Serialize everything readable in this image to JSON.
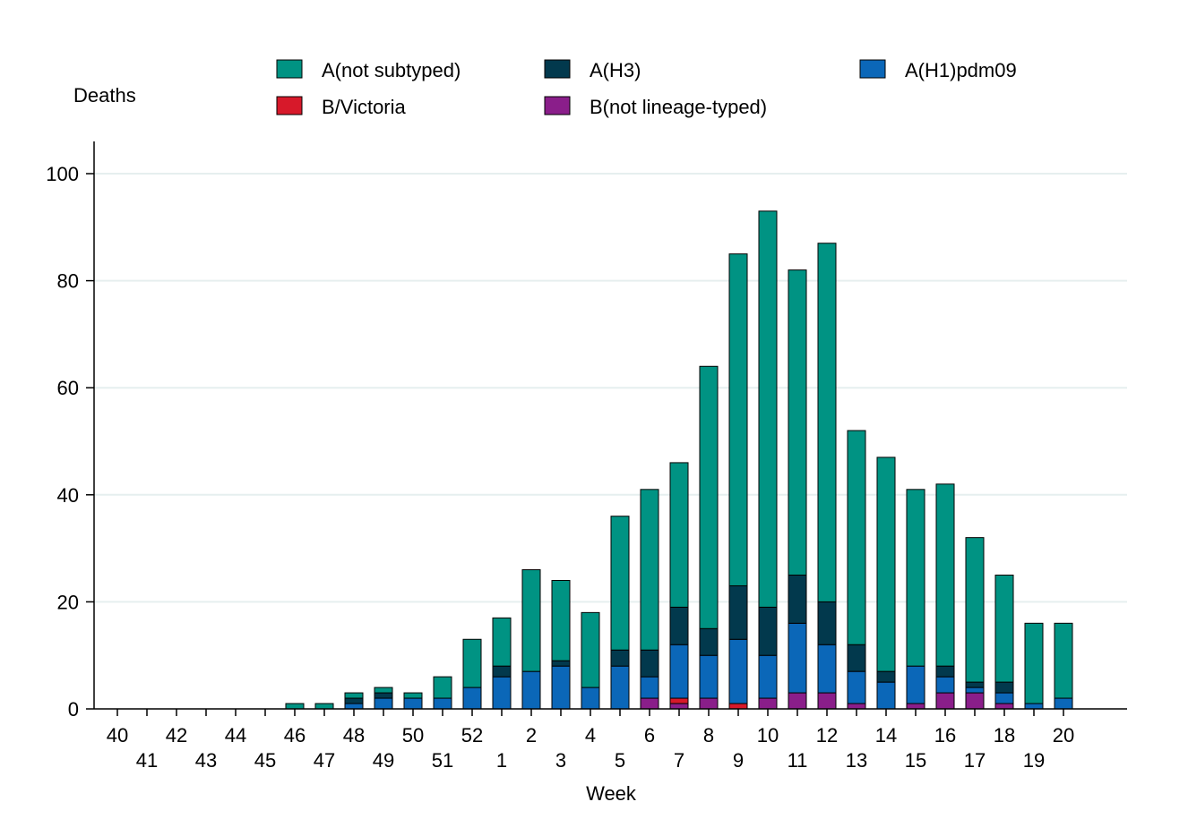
{
  "chart_data": {
    "type": "bar",
    "stacked": true,
    "title": "",
    "xlabel": "Week",
    "ylabel": "Deaths",
    "ylim": [
      0,
      105
    ],
    "yticks": [
      0,
      20,
      40,
      60,
      80,
      100
    ],
    "grid": true,
    "legend_position": "top",
    "categories": [
      "40",
      "41",
      "42",
      "43",
      "44",
      "45",
      "46",
      "47",
      "48",
      "49",
      "50",
      "51",
      "52",
      "1",
      "2",
      "3",
      "4",
      "5",
      "6",
      "7",
      "8",
      "9",
      "10",
      "11",
      "12",
      "13",
      "14",
      "15",
      "16",
      "17",
      "18",
      "19",
      "20"
    ],
    "series": [
      {
        "name": "B(not lineage-typed)",
        "color": "#8a1e8a",
        "values": [
          0,
          0,
          0,
          0,
          0,
          0,
          0,
          0,
          0,
          0,
          0,
          0,
          0,
          0,
          0,
          0,
          0,
          0,
          2,
          1,
          2,
          0,
          2,
          3,
          3,
          1,
          0,
          1,
          3,
          3,
          1,
          0,
          0
        ]
      },
      {
        "name": "B/Victoria",
        "color": "#d7192a",
        "values": [
          0,
          0,
          0,
          0,
          0,
          0,
          0,
          0,
          0,
          0,
          0,
          0,
          0,
          0,
          0,
          0,
          0,
          0,
          0,
          1,
          0,
          1,
          0,
          0,
          0,
          0,
          0,
          0,
          0,
          0,
          0,
          0,
          0
        ]
      },
      {
        "name": "A(H1)pdm09",
        "color": "#0b67b8",
        "values": [
          0,
          0,
          0,
          0,
          0,
          0,
          0,
          0,
          1,
          2,
          2,
          2,
          4,
          6,
          7,
          8,
          4,
          8,
          4,
          10,
          8,
          12,
          8,
          13,
          9,
          6,
          5,
          7,
          3,
          1,
          2,
          1,
          2
        ]
      },
      {
        "name": "A(H3)",
        "color": "#02394d",
        "values": [
          0,
          0,
          0,
          0,
          0,
          0,
          0,
          0,
          1,
          1,
          0,
          0,
          0,
          2,
          0,
          1,
          0,
          3,
          5,
          7,
          5,
          10,
          9,
          9,
          8,
          5,
          2,
          0,
          2,
          1,
          2,
          0,
          0
        ]
      },
      {
        "name": "A(not subtyped)",
        "color": "#009383",
        "values": [
          0,
          0,
          0,
          0,
          0,
          0,
          1,
          1,
          1,
          1,
          1,
          4,
          9,
          9,
          19,
          15,
          14,
          25,
          30,
          27,
          49,
          62,
          74,
          57,
          67,
          40,
          40,
          33,
          34,
          27,
          20,
          15,
          14
        ]
      }
    ],
    "legend_order": [
      "A(not subtyped)",
      "A(H3)",
      "A(H1)pdm09",
      "B/Victoria",
      "B(not lineage-typed)"
    ]
  }
}
